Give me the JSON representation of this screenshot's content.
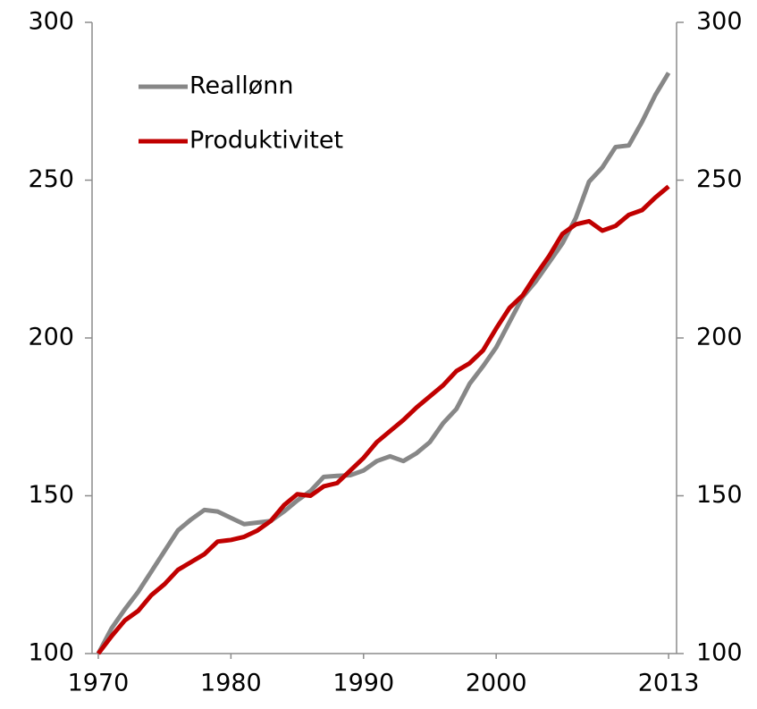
{
  "chart_data": {
    "type": "line",
    "x": [
      1970,
      1971,
      1972,
      1973,
      1974,
      1975,
      1976,
      1977,
      1978,
      1979,
      1980,
      1981,
      1982,
      1983,
      1984,
      1985,
      1986,
      1987,
      1988,
      1989,
      1990,
      1991,
      1992,
      1993,
      1994,
      1995,
      1996,
      1997,
      1998,
      1999,
      2000,
      2001,
      2002,
      2003,
      2004,
      2005,
      2006,
      2007,
      2008,
      2009,
      2010,
      2011,
      2012,
      2013
    ],
    "series": [
      {
        "name": "Reallønn",
        "color": "#878787",
        "values": [
          100,
          108,
          114,
          119.5,
          126,
          132.5,
          139,
          142.5,
          145.5,
          145,
          143,
          141,
          141.5,
          142,
          145,
          148.5,
          151.5,
          156,
          156.3,
          156.5,
          158,
          161,
          162.5,
          161,
          163.5,
          167,
          173,
          177.5,
          185.5,
          191,
          197,
          205,
          213,
          218,
          224,
          230,
          238,
          249.5,
          254,
          260.5,
          261,
          268.5,
          277,
          284
        ]
      },
      {
        "name": "Produktivitet",
        "color": "#c00000",
        "values": [
          100,
          105.5,
          110.5,
          113.5,
          118.5,
          122,
          126.5,
          129,
          131.5,
          135.5,
          136,
          137,
          139,
          142,
          147,
          150.5,
          150,
          153,
          154,
          158,
          162,
          167,
          170.5,
          174,
          178,
          181.5,
          185,
          189.5,
          192,
          196,
          203,
          209.5,
          213.5,
          220,
          226,
          233,
          236,
          237,
          234,
          235.5,
          239,
          240.5,
          244.5,
          248
        ]
      }
    ],
    "xlim": [
      1969.53,
      2013.6
    ],
    "xticks": [
      1970,
      1980,
      1990,
      2000,
      2013
    ],
    "ylim": [
      100,
      300
    ],
    "yticks": [
      100,
      150,
      200,
      250,
      300
    ],
    "y2lim": [
      100,
      300
    ],
    "y2ticks": [
      100,
      150,
      200,
      250,
      300
    ],
    "legend": "upper left"
  }
}
